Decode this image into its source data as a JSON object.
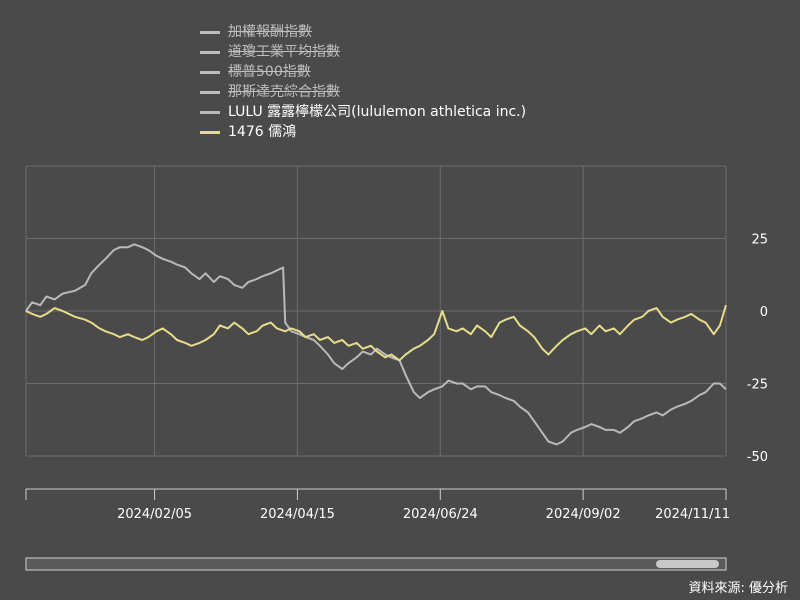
{
  "colors": {
    "background": "#4a4a4a",
    "grid": "#6c6c6c",
    "text": "#ffffff",
    "lulu": "#b9b9b9",
    "ru_hung": "#e6dc8a"
  },
  "legend": [
    {
      "label": "加權報酬指數",
      "visible": false,
      "color": "#bdbdbd"
    },
    {
      "label": "道瓊工業平均指數",
      "visible": false,
      "color": "#bdbdbd"
    },
    {
      "label": "標普500指數",
      "visible": false,
      "color": "#bdbdbd"
    },
    {
      "label": "那斯達克綜合指數",
      "visible": false,
      "color": "#bdbdbd"
    },
    {
      "label": "LULU 露露檸檬公司(lululemon athletica inc.)",
      "visible": true,
      "color": "#b9b9b9"
    },
    {
      "label": "1476 儒鴻",
      "visible": true,
      "color": "#e6dc8a"
    }
  ],
  "source": "資料來源: 優分析",
  "scrollbar": {
    "start": 0.9,
    "end": 0.99
  },
  "chart_data": {
    "type": "line",
    "x_tick_labels": [
      "2024/02/05",
      "2024/04/15",
      "2024/06/24",
      "2024/09/02",
      "2024/11/11"
    ],
    "y_ticks": [
      25,
      0,
      -25,
      -50
    ],
    "ylim": [
      -50,
      50
    ],
    "xlim": [
      "2023-12-04",
      "2024-11-11"
    ],
    "grid": true,
    "y_axis_position": "right",
    "series": [
      {
        "name": "LULU 露露檸檬公司(lululemon athletica inc.)",
        "color": "#b9b9b9",
        "points": [
          [
            "2023-12-04",
            0
          ],
          [
            "2023-12-07",
            3
          ],
          [
            "2023-12-11",
            2
          ],
          [
            "2023-12-14",
            5
          ],
          [
            "2023-12-18",
            4
          ],
          [
            "2023-12-22",
            6
          ],
          [
            "2023-12-28",
            7
          ],
          [
            "2024-01-02",
            9
          ],
          [
            "2024-01-05",
            13
          ],
          [
            "2024-01-09",
            16
          ],
          [
            "2024-01-12",
            18
          ],
          [
            "2024-01-16",
            21
          ],
          [
            "2024-01-19",
            22
          ],
          [
            "2024-01-23",
            22
          ],
          [
            "2024-01-26",
            23
          ],
          [
            "2024-01-30",
            22
          ],
          [
            "2024-02-02",
            21
          ],
          [
            "2024-02-06",
            19
          ],
          [
            "2024-02-09",
            18
          ],
          [
            "2024-02-13",
            17
          ],
          [
            "2024-02-16",
            16
          ],
          [
            "2024-02-20",
            15
          ],
          [
            "2024-02-23",
            13
          ],
          [
            "2024-02-27",
            11
          ],
          [
            "2024-03-01",
            13
          ],
          [
            "2024-03-05",
            10
          ],
          [
            "2024-03-08",
            12
          ],
          [
            "2024-03-12",
            11
          ],
          [
            "2024-03-15",
            9
          ],
          [
            "2024-03-19",
            8
          ],
          [
            "2024-03-22",
            10
          ],
          [
            "2024-03-26",
            11
          ],
          [
            "2024-03-29",
            12
          ],
          [
            "2024-04-02",
            13
          ],
          [
            "2024-04-05",
            14
          ],
          [
            "2024-04-08",
            15
          ],
          [
            "2024-04-09",
            -4
          ],
          [
            "2024-04-12",
            -7
          ],
          [
            "2024-04-16",
            -8
          ],
          [
            "2024-04-19",
            -9
          ],
          [
            "2024-04-23",
            -10
          ],
          [
            "2024-04-26",
            -12
          ],
          [
            "2024-04-30",
            -15
          ],
          [
            "2024-05-03",
            -18
          ],
          [
            "2024-05-07",
            -20
          ],
          [
            "2024-05-10",
            -18
          ],
          [
            "2024-05-14",
            -16
          ],
          [
            "2024-05-17",
            -14
          ],
          [
            "2024-05-21",
            -15
          ],
          [
            "2024-05-24",
            -13
          ],
          [
            "2024-05-28",
            -15
          ],
          [
            "2024-05-31",
            -16
          ],
          [
            "2024-06-04",
            -17
          ],
          [
            "2024-06-07",
            -22
          ],
          [
            "2024-06-11",
            -28
          ],
          [
            "2024-06-14",
            -30
          ],
          [
            "2024-06-18",
            -28
          ],
          [
            "2024-06-21",
            -27
          ],
          [
            "2024-06-25",
            -26
          ],
          [
            "2024-06-28",
            -24
          ],
          [
            "2024-07-02",
            -25
          ],
          [
            "2024-07-05",
            -25
          ],
          [
            "2024-07-09",
            -27
          ],
          [
            "2024-07-12",
            -26
          ],
          [
            "2024-07-16",
            -26
          ],
          [
            "2024-07-19",
            -28
          ],
          [
            "2024-07-23",
            -29
          ],
          [
            "2024-07-26",
            -30
          ],
          [
            "2024-07-30",
            -31
          ],
          [
            "2024-08-02",
            -33
          ],
          [
            "2024-08-06",
            -35
          ],
          [
            "2024-08-09",
            -38
          ],
          [
            "2024-08-13",
            -42
          ],
          [
            "2024-08-16",
            -45
          ],
          [
            "2024-08-20",
            -46
          ],
          [
            "2024-08-23",
            -45
          ],
          [
            "2024-08-27",
            -42
          ],
          [
            "2024-08-30",
            -41
          ],
          [
            "2024-09-03",
            -40
          ],
          [
            "2024-09-06",
            -39
          ],
          [
            "2024-09-10",
            -40
          ],
          [
            "2024-09-13",
            -41
          ],
          [
            "2024-09-17",
            -41
          ],
          [
            "2024-09-20",
            -42
          ],
          [
            "2024-09-24",
            -40
          ],
          [
            "2024-09-27",
            -38
          ],
          [
            "2024-10-01",
            -37
          ],
          [
            "2024-10-04",
            -36
          ],
          [
            "2024-10-08",
            -35
          ],
          [
            "2024-10-11",
            -36
          ],
          [
            "2024-10-15",
            -34
          ],
          [
            "2024-10-18",
            -33
          ],
          [
            "2024-10-22",
            -32
          ],
          [
            "2024-10-25",
            -31
          ],
          [
            "2024-10-29",
            -29
          ],
          [
            "2024-11-01",
            -28
          ],
          [
            "2024-11-05",
            -25
          ],
          [
            "2024-11-08",
            -25
          ],
          [
            "2024-11-11",
            -27
          ]
        ]
      },
      {
        "name": "1476 儒鴻",
        "color": "#e6dc8a",
        "points": [
          [
            "2023-12-04",
            0
          ],
          [
            "2023-12-07",
            -1
          ],
          [
            "2023-12-11",
            -2
          ],
          [
            "2023-12-14",
            -1
          ],
          [
            "2023-12-18",
            1
          ],
          [
            "2023-12-22",
            0
          ],
          [
            "2023-12-28",
            -2
          ],
          [
            "2024-01-02",
            -3
          ],
          [
            "2024-01-05",
            -4
          ],
          [
            "2024-01-09",
            -6
          ],
          [
            "2024-01-12",
            -7
          ],
          [
            "2024-01-16",
            -8
          ],
          [
            "2024-01-19",
            -9
          ],
          [
            "2024-01-23",
            -8
          ],
          [
            "2024-01-26",
            -9
          ],
          [
            "2024-01-30",
            -10
          ],
          [
            "2024-02-02",
            -9
          ],
          [
            "2024-02-06",
            -7
          ],
          [
            "2024-02-09",
            -6
          ],
          [
            "2024-02-13",
            -8
          ],
          [
            "2024-02-16",
            -10
          ],
          [
            "2024-02-20",
            -11
          ],
          [
            "2024-02-23",
            -12
          ],
          [
            "2024-02-27",
            -11
          ],
          [
            "2024-03-01",
            -10
          ],
          [
            "2024-03-05",
            -8
          ],
          [
            "2024-03-08",
            -5
          ],
          [
            "2024-03-12",
            -6
          ],
          [
            "2024-03-15",
            -4
          ],
          [
            "2024-03-19",
            -6
          ],
          [
            "2024-03-22",
            -8
          ],
          [
            "2024-03-26",
            -7
          ],
          [
            "2024-03-29",
            -5
          ],
          [
            "2024-04-02",
            -4
          ],
          [
            "2024-04-05",
            -6
          ],
          [
            "2024-04-09",
            -7
          ],
          [
            "2024-04-12",
            -6
          ],
          [
            "2024-04-16",
            -7
          ],
          [
            "2024-04-19",
            -9
          ],
          [
            "2024-04-23",
            -8
          ],
          [
            "2024-04-26",
            -10
          ],
          [
            "2024-04-30",
            -9
          ],
          [
            "2024-05-03",
            -11
          ],
          [
            "2024-05-07",
            -10
          ],
          [
            "2024-05-10",
            -12
          ],
          [
            "2024-05-14",
            -11
          ],
          [
            "2024-05-17",
            -13
          ],
          [
            "2024-05-21",
            -12
          ],
          [
            "2024-05-24",
            -14
          ],
          [
            "2024-05-28",
            -16
          ],
          [
            "2024-05-31",
            -15
          ],
          [
            "2024-06-04",
            -17
          ],
          [
            "2024-06-07",
            -15
          ],
          [
            "2024-06-11",
            -13
          ],
          [
            "2024-06-14",
            -12
          ],
          [
            "2024-06-18",
            -10
          ],
          [
            "2024-06-21",
            -8
          ],
          [
            "2024-06-25",
            0
          ],
          [
            "2024-06-28",
            -6
          ],
          [
            "2024-07-02",
            -7
          ],
          [
            "2024-07-05",
            -6
          ],
          [
            "2024-07-09",
            -8
          ],
          [
            "2024-07-12",
            -5
          ],
          [
            "2024-07-16",
            -7
          ],
          [
            "2024-07-19",
            -9
          ],
          [
            "2024-07-23",
            -4
          ],
          [
            "2024-07-26",
            -3
          ],
          [
            "2024-07-30",
            -2
          ],
          [
            "2024-08-02",
            -5
          ],
          [
            "2024-08-06",
            -7
          ],
          [
            "2024-08-09",
            -9
          ],
          [
            "2024-08-13",
            -13
          ],
          [
            "2024-08-16",
            -15
          ],
          [
            "2024-08-20",
            -12
          ],
          [
            "2024-08-23",
            -10
          ],
          [
            "2024-08-27",
            -8
          ],
          [
            "2024-08-30",
            -7
          ],
          [
            "2024-09-03",
            -6
          ],
          [
            "2024-09-06",
            -8
          ],
          [
            "2024-09-10",
            -5
          ],
          [
            "2024-09-13",
            -7
          ],
          [
            "2024-09-17",
            -6
          ],
          [
            "2024-09-20",
            -8
          ],
          [
            "2024-09-24",
            -5
          ],
          [
            "2024-09-27",
            -3
          ],
          [
            "2024-10-01",
            -2
          ],
          [
            "2024-10-04",
            0
          ],
          [
            "2024-10-08",
            1
          ],
          [
            "2024-10-11",
            -2
          ],
          [
            "2024-10-15",
            -4
          ],
          [
            "2024-10-18",
            -3
          ],
          [
            "2024-10-22",
            -2
          ],
          [
            "2024-10-25",
            -1
          ],
          [
            "2024-10-29",
            -3
          ],
          [
            "2024-11-01",
            -4
          ],
          [
            "2024-11-05",
            -8
          ],
          [
            "2024-11-08",
            -5
          ],
          [
            "2024-11-11",
            2
          ]
        ]
      }
    ]
  }
}
